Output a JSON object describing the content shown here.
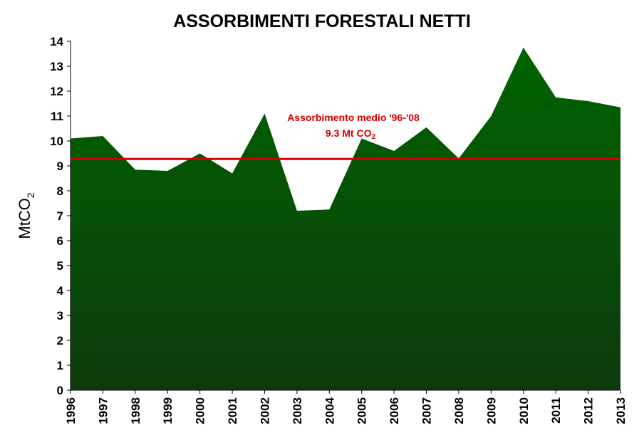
{
  "chart_data": {
    "type": "area",
    "title": "ASSORBIMENTI FORESTALI NETTI",
    "ylabel": "MtCO",
    "ylabel_sub": "2",
    "xlabel": "",
    "ylim": [
      0,
      14
    ],
    "yticks": [
      0,
      1,
      2,
      3,
      4,
      5,
      6,
      7,
      8,
      9,
      10,
      11,
      12,
      13,
      14
    ],
    "categories": [
      "1996",
      "1997",
      "1998",
      "1999",
      "2000",
      "2001",
      "2002",
      "2003",
      "2004",
      "2005",
      "2006",
      "2007",
      "2008",
      "2009",
      "2010",
      "2011",
      "2012",
      "2013"
    ],
    "values": [
      10.1,
      10.2,
      8.85,
      8.8,
      9.5,
      8.7,
      11.1,
      7.2,
      7.25,
      10.1,
      9.6,
      10.55,
      9.3,
      11.0,
      13.75,
      11.75,
      11.6,
      11.35
    ],
    "fill_top_color": "#006400",
    "fill_bottom_color": "#0d3a0d",
    "grid": false,
    "reference_line": {
      "value": 9.28,
      "color": "#d40000",
      "label_line1": "Assorbimento medio '96-'08",
      "label_line2": "9.3 Mt CO",
      "label_line2_sub": "2"
    }
  }
}
